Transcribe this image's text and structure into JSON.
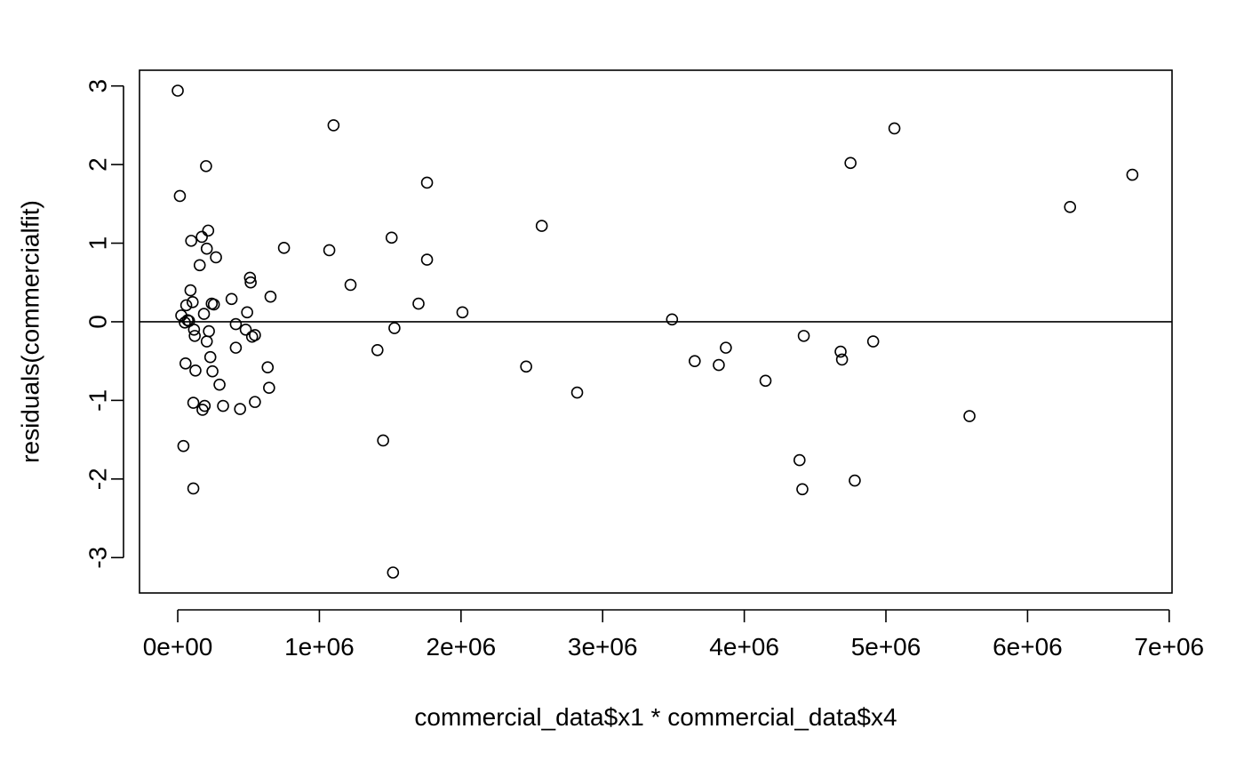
{
  "chart_data": {
    "type": "scatter",
    "title": "",
    "xlabel": "commercial_data$x1 * commercial_data$x4",
    "ylabel": "residuals(commercialfit)",
    "xlim": [
      -270000,
      7020000
    ],
    "ylim": [
      -3.45,
      3.2
    ],
    "x_ticks": [
      0,
      1000000,
      2000000,
      3000000,
      4000000,
      5000000,
      6000000,
      7000000
    ],
    "x_tick_labels": [
      "0e+00",
      "1e+06",
      "2e+06",
      "3e+06",
      "4e+06",
      "5e+06",
      "6e+06",
      "7e+06"
    ],
    "y_ticks": [
      -3,
      -2,
      -1,
      0,
      1,
      2,
      3
    ],
    "y_tick_labels": [
      "-3",
      "-2",
      "-1",
      "0",
      "1",
      "2",
      "3"
    ],
    "reference_line_y": 0,
    "grid": false,
    "legend": "none",
    "point_style": "open-circle",
    "points": [
      [
        0,
        2.94
      ],
      [
        15000,
        1.6
      ],
      [
        25000,
        0.08
      ],
      [
        40000,
        -1.58
      ],
      [
        50000,
        -0.01
      ],
      [
        55000,
        -0.53
      ],
      [
        60000,
        0.21
      ],
      [
        70000,
        0.02
      ],
      [
        80000,
        0.01
      ],
      [
        90000,
        0.4
      ],
      [
        95000,
        1.03
      ],
      [
        105000,
        0.25
      ],
      [
        110000,
        -2.12
      ],
      [
        110000,
        -1.03
      ],
      [
        115000,
        -0.1
      ],
      [
        120000,
        -0.18
      ],
      [
        125000,
        -0.62
      ],
      [
        155000,
        0.72
      ],
      [
        170000,
        1.08
      ],
      [
        175000,
        -1.12
      ],
      [
        185000,
        0.1
      ],
      [
        190000,
        -1.07
      ],
      [
        200000,
        1.98
      ],
      [
        205000,
        -0.25
      ],
      [
        205000,
        0.93
      ],
      [
        215000,
        1.16
      ],
      [
        220000,
        -0.12
      ],
      [
        230000,
        -0.45
      ],
      [
        240000,
        0.23
      ],
      [
        245000,
        -0.63
      ],
      [
        255000,
        0.22
      ],
      [
        270000,
        0.82
      ],
      [
        295000,
        -0.8
      ],
      [
        320000,
        -1.07
      ],
      [
        380000,
        0.29
      ],
      [
        410000,
        -0.03
      ],
      [
        410000,
        -0.33
      ],
      [
        440000,
        -1.11
      ],
      [
        480000,
        -0.1
      ],
      [
        490000,
        0.12
      ],
      [
        510000,
        0.56
      ],
      [
        515000,
        0.5
      ],
      [
        525000,
        -0.19
      ],
      [
        545000,
        -1.02
      ],
      [
        545000,
        -0.17
      ],
      [
        635000,
        -0.58
      ],
      [
        645000,
        -0.84
      ],
      [
        655000,
        0.32
      ],
      [
        750000,
        0.94
      ],
      [
        1070000,
        0.91
      ],
      [
        1100000,
        2.5
      ],
      [
        1220000,
        0.47
      ],
      [
        1410000,
        -0.36
      ],
      [
        1450000,
        -1.51
      ],
      [
        1510000,
        1.07
      ],
      [
        1520000,
        -3.19
      ],
      [
        1530000,
        -0.08
      ],
      [
        1700000,
        0.23
      ],
      [
        1760000,
        0.79
      ],
      [
        1760000,
        1.77
      ],
      [
        2010000,
        0.12
      ],
      [
        2460000,
        -0.57
      ],
      [
        2570000,
        1.22
      ],
      [
        2820000,
        -0.9
      ],
      [
        3490000,
        0.03
      ],
      [
        3650000,
        -0.5
      ],
      [
        3820000,
        -0.55
      ],
      [
        3870000,
        -0.33
      ],
      [
        4150000,
        -0.75
      ],
      [
        4390000,
        -1.76
      ],
      [
        4410000,
        -2.13
      ],
      [
        4420000,
        -0.18
      ],
      [
        4680000,
        -0.38
      ],
      [
        4690000,
        -0.48
      ],
      [
        4750000,
        2.02
      ],
      [
        4780000,
        -2.02
      ],
      [
        4910000,
        -0.25
      ],
      [
        5060000,
        2.46
      ],
      [
        5590000,
        -1.2
      ],
      [
        6300000,
        1.46
      ],
      [
        6740000,
        1.87
      ]
    ]
  }
}
